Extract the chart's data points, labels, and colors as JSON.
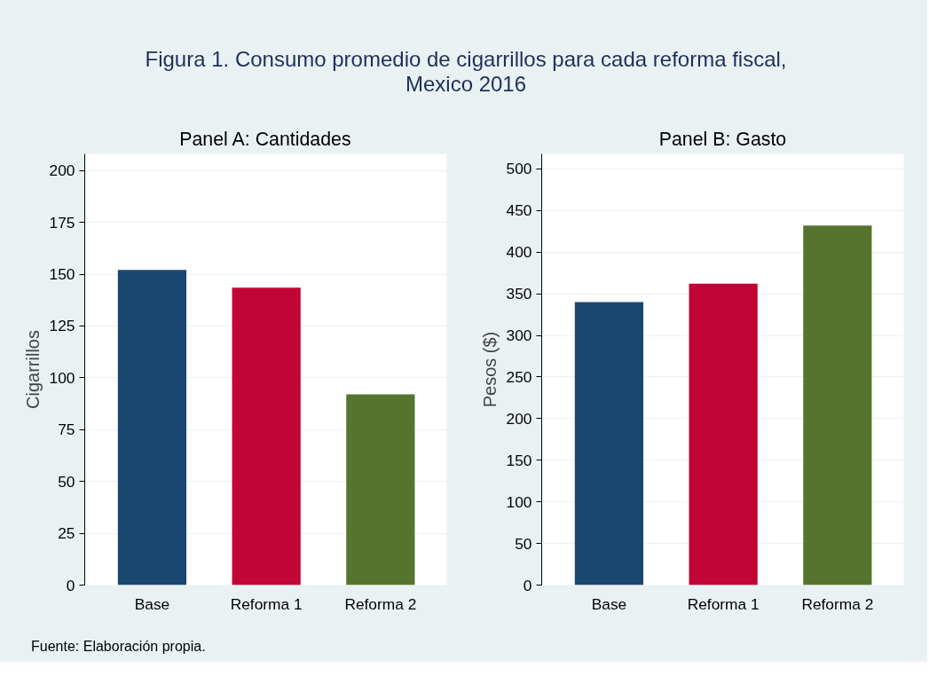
{
  "chart_data": [
    {
      "type": "bar",
      "title": "Figura 1. Consumo promedio de cigarrillos para cada reforma fiscal,\nMexico 2016",
      "subtitle": "Panel A: Cantidades",
      "ylabel": "Cigarrillos",
      "categories": [
        "Base",
        "Reforma 1",
        "Reforma 2"
      ],
      "values": [
        152,
        143.5,
        92
      ],
      "colors": [
        "#1a476f",
        "#c10534",
        "#55752f"
      ],
      "ylim": [
        0,
        208
      ],
      "yticks": [
        0,
        25,
        50,
        75,
        100,
        125,
        150,
        175,
        200
      ],
      "grid": "y",
      "annotations": [
        "Fuente: Elaboración propia."
      ]
    },
    {
      "type": "bar",
      "title": "Panel B: Gasto",
      "ylabel": "Pesos ($)",
      "categories": [
        "Base",
        "Reforma 1",
        "Reforma 2"
      ],
      "values": [
        340,
        362,
        432
      ],
      "colors": [
        "#1a476f",
        "#c10534",
        "#55752f"
      ],
      "ylim": [
        0,
        518
      ],
      "yticks": [
        0,
        50,
        100,
        150,
        200,
        250,
        300,
        350,
        400,
        450,
        500
      ],
      "grid": "y"
    }
  ]
}
